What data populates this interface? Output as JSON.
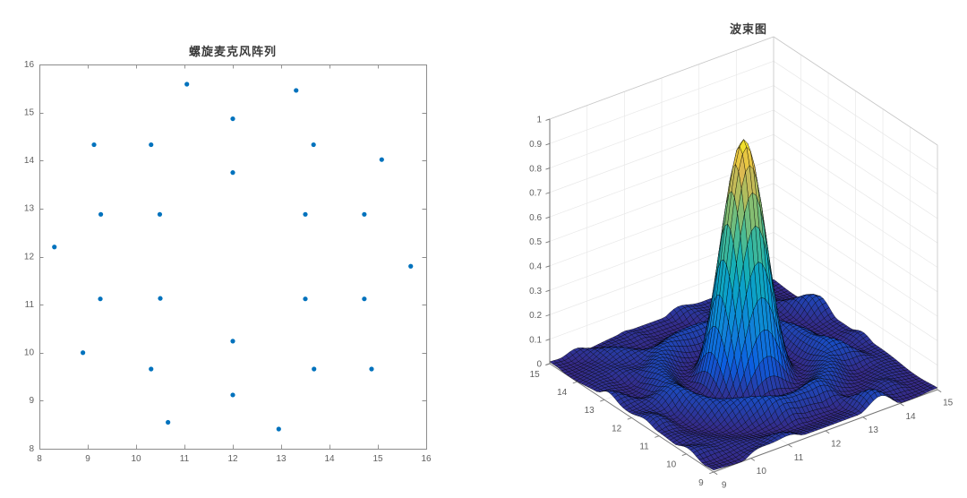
{
  "window": {
    "background": "#ffffff"
  },
  "chart_data": [
    {
      "type": "scatter",
      "title": "螺旋麦克风阵列",
      "xlabel": "",
      "ylabel": "",
      "xlim": [
        8,
        16
      ],
      "ylim": [
        8,
        16
      ],
      "xticks": [
        8,
        9,
        10,
        11,
        12,
        13,
        14,
        15,
        16
      ],
      "yticks": [
        8,
        9,
        10,
        11,
        12,
        13,
        14,
        15,
        16
      ],
      "grid": false,
      "marker_color": "#0072BD",
      "axis_color": "#8c8c8c",
      "tick_label_color": "#5f5f5f",
      "points": [
        [
          8.31,
          12.2
        ],
        [
          8.9,
          10.0
        ],
        [
          9.13,
          14.33
        ],
        [
          9.27,
          12.88
        ],
        [
          9.26,
          11.12
        ],
        [
          10.31,
          14.33
        ],
        [
          10.49,
          12.88
        ],
        [
          10.5,
          11.13
        ],
        [
          10.31,
          9.66
        ],
        [
          10.66,
          8.55
        ],
        [
          11.05,
          15.59
        ],
        [
          12.0,
          14.87
        ],
        [
          12.0,
          13.75
        ],
        [
          12.0,
          10.24
        ],
        [
          12.0,
          9.12
        ],
        [
          12.95,
          8.41
        ],
        [
          13.31,
          15.46
        ],
        [
          13.67,
          14.33
        ],
        [
          13.5,
          12.88
        ],
        [
          13.5,
          11.12
        ],
        [
          13.68,
          9.66
        ],
        [
          14.72,
          12.88
        ],
        [
          14.72,
          11.12
        ],
        [
          14.87,
          9.66
        ],
        [
          15.08,
          14.02
        ],
        [
          15.68,
          11.8
        ]
      ]
    },
    {
      "type": "surface",
      "title": "波束图",
      "xlim": [
        9,
        15
      ],
      "ylim": [
        9,
        15
      ],
      "zlim": [
        0,
        1
      ],
      "xticks": [
        9,
        10,
        11,
        12,
        13,
        14,
        15
      ],
      "yticks": [
        9,
        10,
        11,
        12,
        13,
        14,
        15
      ],
      "zticks": [
        0,
        0.1,
        0.2,
        0.3,
        0.4,
        0.5,
        0.6,
        0.7,
        0.8,
        0.9,
        1
      ],
      "view": "matlab-default-3d",
      "colormap": "parula",
      "colormap_stops": [
        [
          0,
          "#352a87"
        ],
        [
          0.125,
          "#0c5ee0"
        ],
        [
          0.25,
          "#1181d8"
        ],
        [
          0.375,
          "#079bd0"
        ],
        [
          0.5,
          "#18b1b2"
        ],
        [
          0.625,
          "#55bd8d"
        ],
        [
          0.75,
          "#a2be62"
        ],
        [
          0.875,
          "#e3b94f"
        ],
        [
          1,
          "#f9fb15"
        ]
      ],
      "surface_model": {
        "description": "beam pattern: narrow main lobe at array center with ring sidelobe and low irregular ripples",
        "peak_x": 12,
        "peak_y": 12,
        "peak_z": 0.97,
        "mainlobe_shape": "sinc_squared",
        "first_null_radius": 1.25,
        "sidelobe_ring_radius": 1.9,
        "sidelobe_ring_boost": 0.025,
        "ripple_amplitude": 0.06,
        "ripple_inner_cutoff": 1.35,
        "grid_divisions": 56
      },
      "edge_color": "rgba(0,0,0,0.8)",
      "wall_grid_color": "#e8e8e8",
      "box_edge_color": "#c8c8c8",
      "axis_color": "#767676",
      "tick_label_color": "#5f5f5f"
    }
  ]
}
